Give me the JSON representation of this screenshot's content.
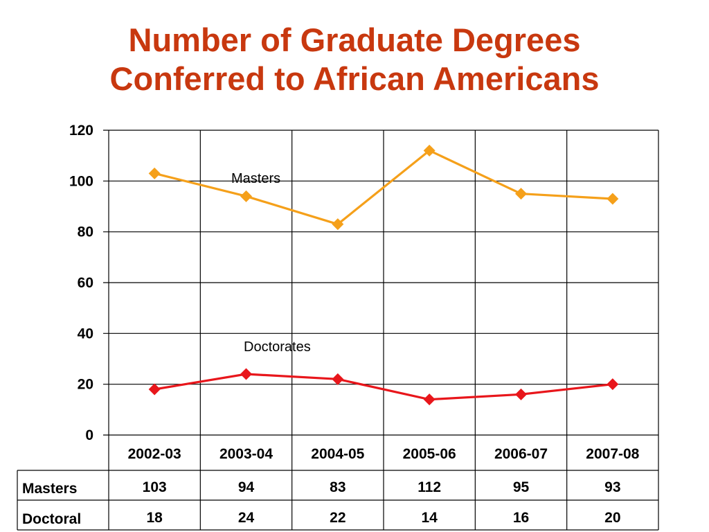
{
  "title": {
    "line1": "Number of Graduate Degrees",
    "line2": "Conferred to African Americans"
  },
  "colors": {
    "title": "#c8380f",
    "masters": "#f5a01a",
    "doctorates": "#e8161b"
  },
  "chart_data": {
    "type": "line",
    "title": "Number of Graduate Degrees Conferred to African Americans",
    "categories": [
      "2002-03",
      "2003-04",
      "2004-05",
      "2005-06",
      "2006-07",
      "2007-08"
    ],
    "series": [
      {
        "name": "Masters",
        "values": [
          103,
          94,
          83,
          112,
          95,
          93
        ]
      },
      {
        "name": "Doctorates",
        "values": [
          18,
          24,
          22,
          14,
          16,
          20
        ]
      }
    ],
    "ylim": [
      0,
      120
    ],
    "yticks": [
      "0",
      "20",
      "40",
      "60",
      "80",
      "100",
      "120"
    ],
    "grid": true,
    "legend": "none",
    "data_table": {
      "rows": [
        {
          "label": "Masters",
          "values": [
            "103",
            "94",
            "83",
            "112",
            "95",
            "93"
          ]
        },
        {
          "label": "Doctoral",
          "values": [
            "18",
            "24",
            "22",
            "14",
            "16",
            "20"
          ]
        }
      ]
    }
  }
}
